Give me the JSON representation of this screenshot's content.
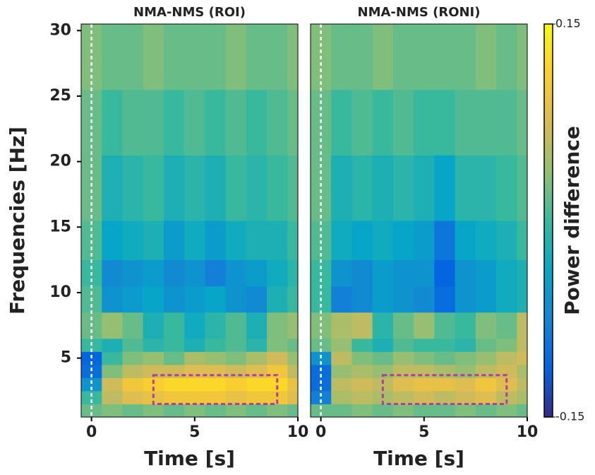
{
  "chart_data": [
    {
      "type": "heatmap",
      "title": "NMA-NMS (ROI)",
      "xlabel": "Time [s]",
      "ylabel": "Frequencies [Hz]",
      "xlim": [
        -0.5,
        10
      ],
      "ylim": [
        0.5,
        30.5
      ],
      "xticks": [
        0,
        5,
        10
      ],
      "yticks": [
        5,
        10,
        15,
        20,
        25,
        30
      ],
      "x_edges": [
        -0.5,
        0.5,
        1.5,
        2.5,
        3.5,
        4.5,
        5.5,
        6.5,
        7.5,
        8.5,
        9.5,
        10
      ],
      "y_edges": [
        0.5,
        1.5,
        2.5,
        3.5,
        4.5,
        5.5,
        6.5,
        8.5,
        10.5,
        12.5,
        15.5,
        20.5,
        25.5,
        30.5
      ],
      "z": [
        [
          0.02,
          0.03,
          0.02,
          0.03,
          0.02,
          0.03,
          0.02,
          0.03,
          0.02,
          0.03,
          0.02
        ],
        [
          0.0,
          0.06,
          0.08,
          0.09,
          0.1,
          0.1,
          0.1,
          0.09,
          0.1,
          0.1,
          0.08
        ],
        [
          -0.06,
          0.07,
          0.1,
          0.11,
          0.12,
          0.12,
          0.12,
          0.11,
          0.12,
          0.12,
          0.09
        ],
        [
          -0.1,
          0.03,
          0.06,
          0.07,
          0.07,
          0.08,
          0.08,
          0.07,
          0.08,
          0.1,
          0.06
        ],
        [
          -0.11,
          0.0,
          0.03,
          0.04,
          0.02,
          0.05,
          0.04,
          0.03,
          0.05,
          0.07,
          0.04
        ],
        [
          0.0,
          -0.02,
          0.01,
          -0.01,
          0.0,
          -0.02,
          0.0,
          0.01,
          -0.01,
          0.03,
          0.02
        ],
        [
          0.02,
          0.04,
          0.02,
          -0.02,
          0.0,
          -0.03,
          -0.01,
          0.01,
          -0.02,
          0.03,
          0.04
        ],
        [
          0.01,
          -0.06,
          -0.05,
          -0.04,
          -0.06,
          -0.05,
          -0.04,
          -0.06,
          -0.07,
          -0.02,
          0.0
        ],
        [
          0.0,
          -0.07,
          -0.06,
          -0.05,
          -0.07,
          -0.06,
          -0.08,
          -0.06,
          -0.05,
          -0.03,
          -0.01
        ],
        [
          0.01,
          -0.04,
          -0.03,
          -0.02,
          -0.05,
          -0.03,
          -0.05,
          -0.03,
          -0.02,
          -0.02,
          0.0
        ],
        [
          0.02,
          -0.02,
          -0.01,
          0.0,
          -0.02,
          -0.01,
          -0.02,
          0.0,
          -0.01,
          0.0,
          0.01
        ],
        [
          0.02,
          0.0,
          0.01,
          0.01,
          0.0,
          0.01,
          0.0,
          0.01,
          0.0,
          0.01,
          0.02
        ],
        [
          0.03,
          0.02,
          0.02,
          0.03,
          0.02,
          0.02,
          0.02,
          0.03,
          0.02,
          0.02,
          0.03
        ]
      ],
      "event_line": 0,
      "roi": {
        "x": [
          3,
          9
        ],
        "y": [
          1.5,
          3.7
        ],
        "color": "#b0409a"
      }
    },
    {
      "type": "heatmap",
      "title": "NMA-NMS (RONI)",
      "xlabel": "Time [s]",
      "xlim": [
        -0.5,
        10
      ],
      "ylim": [
        0.5,
        30.5
      ],
      "xticks": [
        0,
        5,
        10
      ],
      "x_edges": [
        -0.5,
        0.5,
        1.5,
        2.5,
        3.5,
        4.5,
        5.5,
        6.5,
        7.5,
        8.5,
        9.5,
        10
      ],
      "y_edges": [
        0.5,
        1.5,
        2.5,
        3.5,
        4.5,
        5.5,
        6.5,
        8.5,
        10.5,
        12.5,
        15.5,
        20.5,
        25.5,
        30.5
      ],
      "z": [
        [
          0.02,
          0.02,
          0.03,
          0.02,
          0.03,
          0.02,
          0.02,
          0.03,
          0.02,
          0.03,
          0.02
        ],
        [
          -0.08,
          0.05,
          0.06,
          0.05,
          0.06,
          0.07,
          0.06,
          0.07,
          0.08,
          0.06,
          0.05
        ],
        [
          -0.1,
          0.06,
          0.07,
          0.06,
          0.08,
          0.09,
          0.09,
          0.08,
          0.1,
          0.08,
          0.06
        ],
        [
          -0.1,
          0.04,
          0.05,
          0.04,
          0.06,
          0.06,
          0.05,
          0.04,
          0.06,
          0.07,
          0.05
        ],
        [
          -0.06,
          0.06,
          0.03,
          0.02,
          0.04,
          0.03,
          0.02,
          0.03,
          0.04,
          0.06,
          0.07
        ],
        [
          0.02,
          0.04,
          0.0,
          -0.02,
          0.01,
          0.0,
          0.0,
          -0.01,
          0.02,
          0.03,
          0.06
        ],
        [
          0.03,
          0.05,
          0.06,
          -0.01,
          0.02,
          0.04,
          0.01,
          0.0,
          0.03,
          0.02,
          0.06
        ],
        [
          0.0,
          -0.08,
          -0.07,
          -0.05,
          -0.06,
          -0.07,
          -0.1,
          -0.06,
          -0.05,
          -0.03,
          -0.02
        ],
        [
          0.0,
          -0.06,
          -0.07,
          -0.05,
          -0.06,
          -0.06,
          -0.11,
          -0.06,
          -0.05,
          -0.03,
          -0.02
        ],
        [
          0.01,
          -0.03,
          -0.04,
          -0.03,
          -0.04,
          -0.05,
          -0.09,
          -0.04,
          -0.03,
          -0.02,
          0.0
        ],
        [
          0.02,
          -0.02,
          -0.01,
          -0.02,
          -0.01,
          -0.02,
          -0.04,
          -0.01,
          -0.01,
          0.0,
          0.01
        ],
        [
          0.02,
          0.0,
          0.01,
          0.0,
          0.01,
          0.0,
          0.0,
          0.01,
          0.01,
          0.01,
          0.02
        ],
        [
          0.03,
          0.02,
          0.02,
          0.03,
          0.02,
          0.02,
          0.02,
          0.02,
          0.03,
          0.02,
          0.03
        ]
      ],
      "event_line": 0,
      "roi": {
        "x": [
          3,
          9
        ],
        "y": [
          1.5,
          3.7
        ],
        "color": "#b0409a"
      },
      "colorbar": {
        "label": "Power difference",
        "zlim": [
          -0.15,
          0.15
        ],
        "ticks": [
          0.15,
          -0.15
        ],
        "colormap": [
          "#352a87",
          "#0363e1",
          "#1485d4",
          "#06a7c6",
          "#38b99e",
          "#92bf73",
          "#d9ba56",
          "#fcce2e",
          "#f9fb0e"
        ]
      }
    }
  ]
}
